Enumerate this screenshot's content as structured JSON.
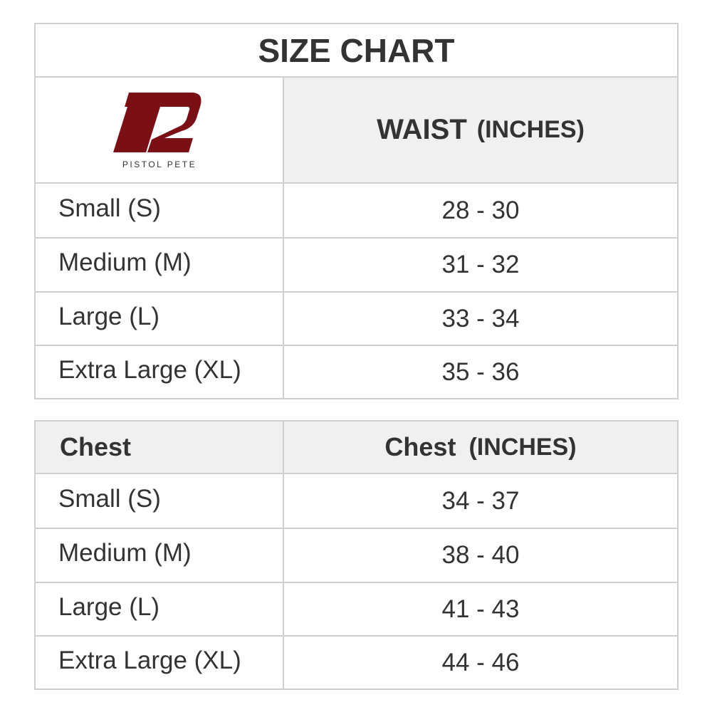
{
  "title": "SIZE CHART",
  "logo": {
    "text": "PISTOL PETE"
  },
  "waist_table": {
    "header": {
      "label": "WAIST",
      "unit": "(INCHES)"
    },
    "rows": [
      [
        "Small (S)",
        "28 - 30"
      ],
      [
        "Medium (M)",
        "31 - 32"
      ],
      [
        "Large (L)",
        "33 - 34"
      ],
      [
        "Extra Large (XL)",
        "35 - 36"
      ]
    ]
  },
  "chest_table": {
    "header": {
      "first": "Chest",
      "label": "Chest",
      "unit": "(INCHES)"
    },
    "rows": [
      [
        "Small (S)",
        "34 - 37"
      ],
      [
        "Medium (M)",
        "38 - 40"
      ],
      [
        "Large (L)",
        "41 - 43"
      ],
      [
        "Extra Large (XL)",
        "44 - 46"
      ]
    ]
  }
}
